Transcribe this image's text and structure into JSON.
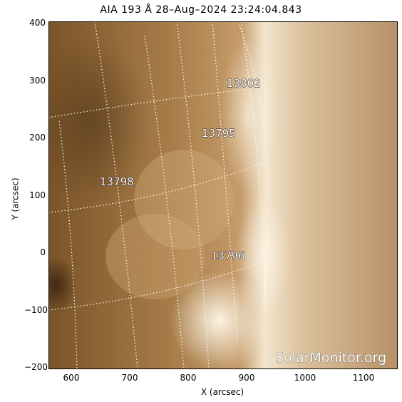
{
  "title": "AIA 193 Å 28–Aug–2024  23:24:04.843",
  "xlabel": "X (arcsec)",
  "ylabel": "Y (arcsec)",
  "xticks": [
    "600",
    "700",
    "800",
    "900",
    "1000",
    "1100"
  ],
  "yticks": [
    "400",
    "300",
    "200",
    "100",
    "0",
    "−100",
    "−200"
  ],
  "regions": [
    {
      "id": "13802",
      "label": "13802"
    },
    {
      "id": "13795",
      "label": "13795"
    },
    {
      "id": "13798",
      "label": "13798"
    },
    {
      "id": "13796",
      "label": "13796"
    }
  ],
  "watermark": "SolarMonitor.org",
  "colors": {
    "disk_dark": "#6e4a22",
    "disk_mid": "#b98f5c",
    "limb": "#f6ecd8",
    "corona": "#cdb08a"
  }
}
